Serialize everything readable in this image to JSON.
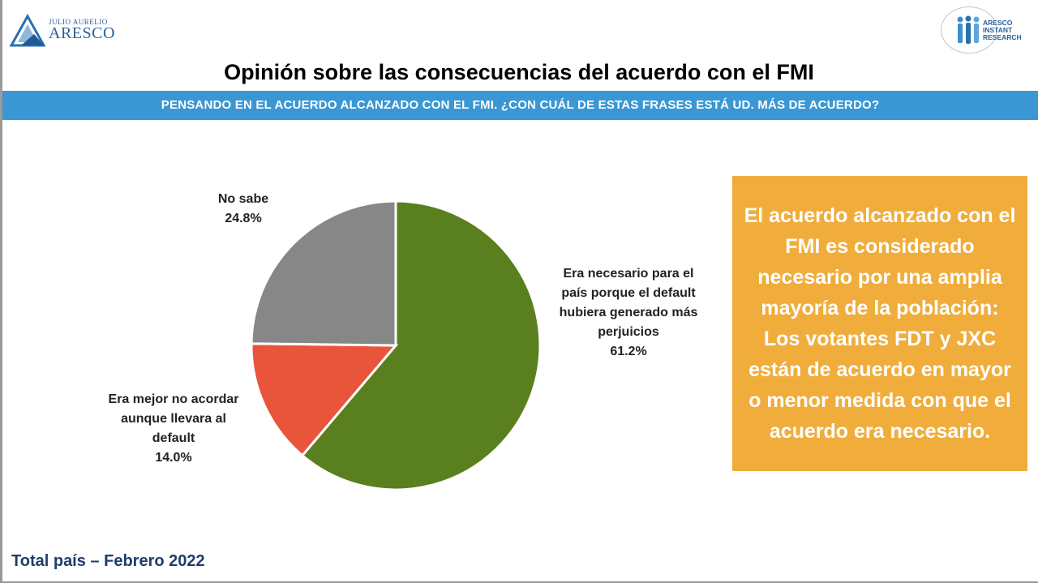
{
  "header": {
    "logo_left_small": "JULIO AURELIO",
    "logo_left_big": "ARESCO",
    "logo_right_lines": [
      "ARESCO",
      "INSTANT",
      "RESEARCH"
    ]
  },
  "title": "Opinión sobre las consecuencias del acuerdo con el FMI",
  "question": "PENSANDO EN EL ACUERDO ALCANZADO CON EL FMI. ¿CON CUÁL DE ESTAS FRASES ESTÁ UD. MÁS DE ACUERDO?",
  "chart_data": {
    "type": "pie",
    "categories": [
      "Era necesario para el país porque el default hubiera generado más perjuicios",
      "Era mejor no acordar aunque llevara al default",
      "No sabe"
    ],
    "values": [
      61.2,
      14.0,
      24.8
    ],
    "value_labels": [
      "61.2%",
      "14.0%",
      "24.8%"
    ],
    "colors": [
      "#5a7f1f",
      "#e8553a",
      "#878787"
    ],
    "label_lines": [
      [
        "Era necesario para el",
        "país porque el default",
        "hubiera generado más",
        "perjuicios"
      ],
      [
        "Era mejor no acordar",
        "aunque llevara al",
        "default"
      ],
      [
        "No sabe"
      ]
    ],
    "start": "12 o'clock",
    "direction": "clockwise"
  },
  "callout": "El acuerdo alcanzado con el FMI es considerado necesario por una amplia mayoría de la población: Los votantes FDT y JXC están de acuerdo en mayor o menor medida con que el acuerdo era necesario.",
  "footer": "Total país – Febrero 2022"
}
